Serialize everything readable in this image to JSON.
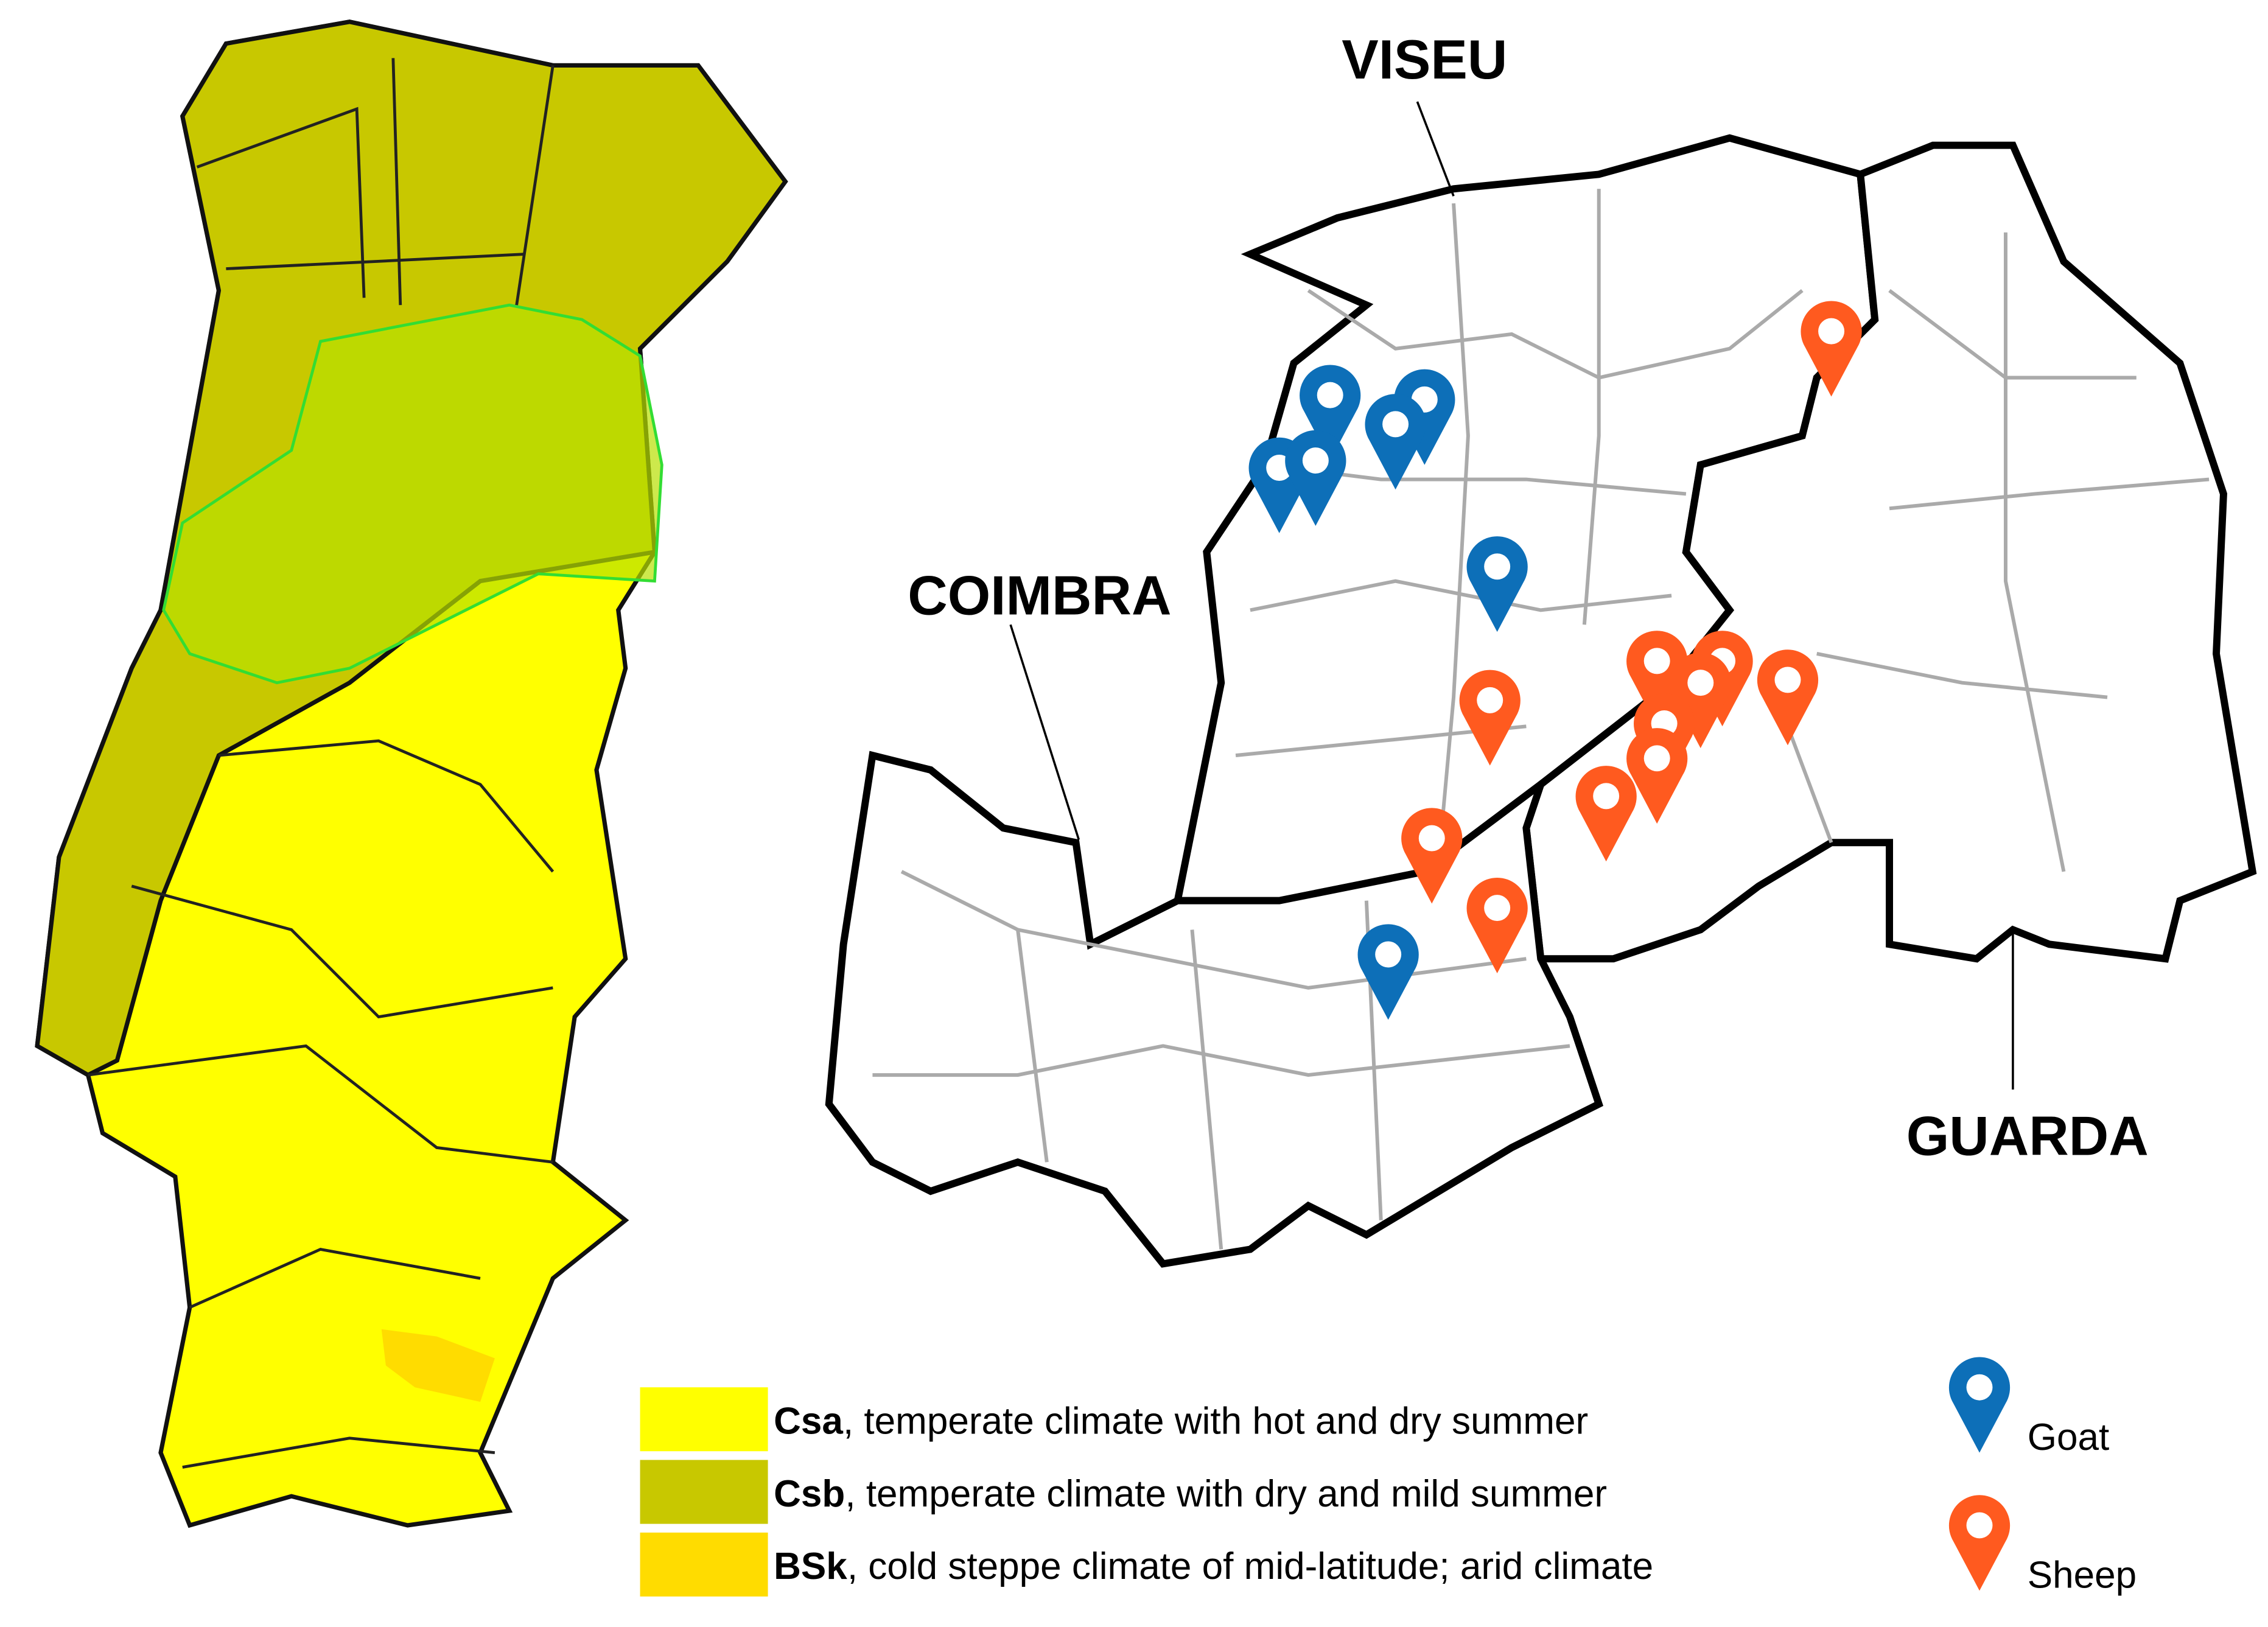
{
  "districts": [
    {
      "label": "VISEU"
    },
    {
      "label": "COIMBRA"
    },
    {
      "label": "GUARDA"
    }
  ],
  "climate_legend": [
    {
      "code": "Csa",
      "description": ", temperate climate with hot and dry summer",
      "color": "#ffff00"
    },
    {
      "code": "Csb",
      "description": ", temperate climate with dry and mild summer",
      "color": "#c8c800"
    },
    {
      "code": "BSk",
      "description": ", cold steppe climate of mid-latitude; arid climate",
      "color": "#ffdc00"
    }
  ],
  "marker_legend": [
    {
      "label": "Goat",
      "color": "#0d6fb8"
    },
    {
      "label": "Sheep",
      "color": "#ff5a1f"
    }
  ]
}
